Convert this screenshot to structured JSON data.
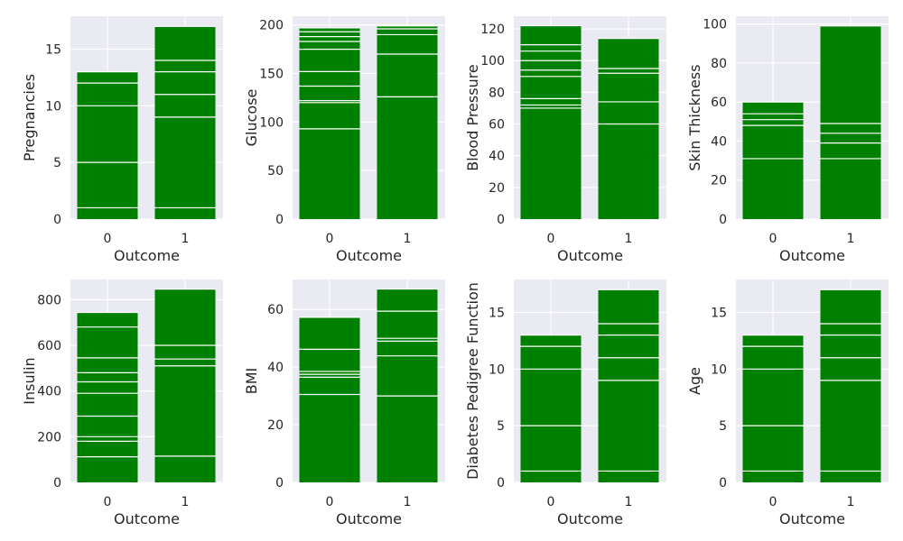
{
  "figure": {
    "background": "#ffffff",
    "plot_background": "#eaeaf2",
    "grid_color": "#ffffff",
    "bar_color": "#008000",
    "segment_line_color": "#ffffff"
  },
  "chart_data": [
    {
      "type": "bar",
      "subtype": "stacked-overlaid",
      "categories": [
        "0",
        "1"
      ],
      "xlabel": "Outcome",
      "ylabel": "Pregnancies",
      "ylim": [
        0,
        17.9
      ],
      "yticks": [
        0,
        5,
        10,
        15
      ],
      "grid": true,
      "bars": [
        {
          "category": "0",
          "value": 13,
          "segments": [
            1,
            5,
            10,
            12,
            13
          ]
        },
        {
          "category": "1",
          "value": 17,
          "segments": [
            1,
            9,
            11,
            13,
            14,
            17
          ]
        }
      ]
    },
    {
      "type": "bar",
      "subtype": "stacked-overlaid",
      "categories": [
        "0",
        "1"
      ],
      "xlabel": "Outcome",
      "ylabel": "Glucose",
      "ylim": [
        0,
        209
      ],
      "yticks": [
        0,
        50,
        100,
        150,
        200
      ],
      "grid": true,
      "bars": [
        {
          "category": "0",
          "value": 197,
          "segments": [
            93,
            120,
            122,
            137,
            152,
            175,
            183,
            188,
            193,
            197
          ]
        },
        {
          "category": "1",
          "value": 199,
          "segments": [
            126,
            170,
            190,
            196,
            199
          ]
        }
      ]
    },
    {
      "type": "bar",
      "subtype": "stacked-overlaid",
      "categories": [
        "0",
        "1"
      ],
      "xlabel": "Outcome",
      "ylabel": "Blood Pressure",
      "ylim": [
        0,
        128
      ],
      "yticks": [
        0,
        20,
        40,
        60,
        80,
        100,
        120
      ],
      "grid": true,
      "bars": [
        {
          "category": "0",
          "value": 122,
          "segments": [
            70,
            72,
            76,
            90,
            94,
            100,
            106,
            110,
            122
          ]
        },
        {
          "category": "1",
          "value": 114,
          "segments": [
            60,
            74,
            92,
            95,
            114
          ]
        }
      ]
    },
    {
      "type": "bar",
      "subtype": "stacked-overlaid",
      "categories": [
        "0",
        "1"
      ],
      "xlabel": "Outcome",
      "ylabel": "Skin Thickness",
      "ylim": [
        0,
        104
      ],
      "yticks": [
        0,
        20,
        40,
        60,
        80,
        100
      ],
      "grid": true,
      "bars": [
        {
          "category": "0",
          "value": 60,
          "segments": [
            31,
            48,
            51,
            54,
            60
          ]
        },
        {
          "category": "1",
          "value": 99,
          "segments": [
            31,
            39,
            44,
            49,
            99
          ]
        }
      ]
    },
    {
      "type": "bar",
      "subtype": "stacked-overlaid",
      "categories": [
        "0",
        "1"
      ],
      "xlabel": "Outcome",
      "ylabel": "Insulin",
      "ylim": [
        0,
        888
      ],
      "yticks": [
        0,
        200,
        400,
        600,
        800
      ],
      "grid": true,
      "bars": [
        {
          "category": "0",
          "value": 744,
          "segments": [
            112,
            180,
            200,
            290,
            390,
            440,
            480,
            545,
            680,
            744
          ]
        },
        {
          "category": "1",
          "value": 846,
          "segments": [
            115,
            510,
            540,
            600,
            846
          ]
        }
      ]
    },
    {
      "type": "bar",
      "subtype": "stacked-overlaid",
      "categories": [
        "0",
        "1"
      ],
      "xlabel": "Outcome",
      "ylabel": "BMI",
      "ylim": [
        0,
        70.4
      ],
      "yticks": [
        0,
        20,
        40,
        60
      ],
      "grid": true,
      "bars": [
        {
          "category": "0",
          "value": 57.3,
          "segments": [
            30.5,
            36.5,
            37.5,
            38.5,
            46.2,
            57.3
          ]
        },
        {
          "category": "1",
          "value": 67.1,
          "segments": [
            30,
            43.9,
            49,
            50,
            59.4,
            67.1
          ]
        }
      ]
    },
    {
      "type": "bar",
      "subtype": "stacked-overlaid",
      "categories": [
        "0",
        "1"
      ],
      "xlabel": "Outcome",
      "ylabel": "Diabetes Pedigree Function",
      "ylim": [
        0,
        17.9
      ],
      "yticks": [
        0,
        5,
        10,
        15
      ],
      "grid": true,
      "bars": [
        {
          "category": "0",
          "value": 13,
          "segments": [
            1,
            5,
            10,
            12,
            13
          ]
        },
        {
          "category": "1",
          "value": 17,
          "segments": [
            1,
            9,
            11,
            13,
            14,
            17
          ]
        }
      ]
    },
    {
      "type": "bar",
      "subtype": "stacked-overlaid",
      "categories": [
        "0",
        "1"
      ],
      "xlabel": "Outcome",
      "ylabel": "Age",
      "ylim": [
        0,
        17.9
      ],
      "yticks": [
        0,
        5,
        10,
        15
      ],
      "grid": true,
      "bars": [
        {
          "category": "0",
          "value": 13,
          "segments": [
            1,
            5,
            10,
            12,
            13
          ]
        },
        {
          "category": "1",
          "value": 17,
          "segments": [
            1,
            9,
            11,
            13,
            14,
            17
          ]
        }
      ]
    }
  ]
}
